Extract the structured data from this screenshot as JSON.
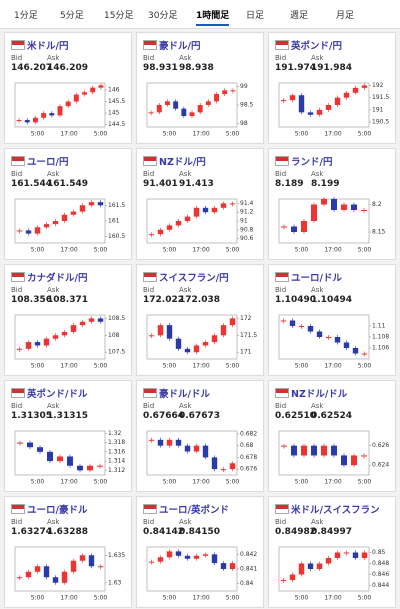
{
  "tabs": [
    "1分足",
    "5分足",
    "15分足",
    "30分足",
    "1時間足",
    "日足",
    "週足",
    "月足"
  ],
  "active_tab": 4,
  "cards": [
    {
      "name": "米ドル/円",
      "bid_label": "Bid",
      "ask_label": "Ask",
      "bid": "146.207",
      "ask": "146.209",
      "chart": {
        "ylim": [
          144.4,
          146.3
        ],
        "yticks": [
          146,
          145.5,
          145,
          144.5
        ],
        "xticks": [
          "5:00",
          "17:00",
          "5:00"
        ],
        "close": [
          144.7,
          144.6,
          144.8,
          145.0,
          144.9,
          145.3,
          145.5,
          145.8,
          145.9,
          146.1,
          146.2
        ]
      }
    },
    {
      "name": "豪ドル/円",
      "bid_label": "Bid",
      "ask_label": "Ask",
      "bid": "98.931",
      "ask": "98.938",
      "chart": {
        "ylim": [
          97.9,
          99.1
        ],
        "yticks": [
          99,
          98.5,
          98
        ],
        "xticks": [
          "5:00",
          "17:00",
          "5:00"
        ],
        "close": [
          98.3,
          98.5,
          98.6,
          98.4,
          98.2,
          98.3,
          98.5,
          98.6,
          98.8,
          98.9,
          98.9
        ]
      }
    },
    {
      "name": "英ポンド/円",
      "bid_label": "Bid",
      "ask_label": "Ask",
      "bid": "191.974",
      "ask": "191.984",
      "chart": {
        "ylim": [
          190.3,
          192.1
        ],
        "yticks": [
          192,
          191.5,
          191,
          190.5
        ],
        "xticks": [
          "5:00",
          "17:00",
          "5:00"
        ],
        "close": [
          191.4,
          191.6,
          190.9,
          190.8,
          191.0,
          191.2,
          191.5,
          191.7,
          191.9,
          192.0
        ]
      }
    },
    {
      "name": "ユーロ/円",
      "bid_label": "Bid",
      "ask_label": "Ask",
      "bid": "161.544",
      "ask": "161.549",
      "chart": {
        "ylim": [
          160.3,
          161.7
        ],
        "yticks": [
          161.5,
          161,
          160.5
        ],
        "xticks": [
          "5:00",
          "17:00",
          "5:00"
        ],
        "close": [
          160.7,
          160.6,
          160.8,
          160.9,
          161.0,
          161.2,
          161.3,
          161.5,
          161.6,
          161.5
        ]
      }
    },
    {
      "name": "NZドル/円",
      "bid_label": "Bid",
      "ask_label": "Ask",
      "bid": "91.401",
      "ask": "91.413",
      "chart": {
        "ylim": [
          90.5,
          91.5
        ],
        "yticks": [
          91.4,
          91.2,
          91,
          90.8,
          90.6
        ],
        "xticks": [
          "5:00",
          "17:00",
          "5:00"
        ],
        "close": [
          90.7,
          90.8,
          90.9,
          91.0,
          91.1,
          91.3,
          91.2,
          91.3,
          91.4,
          91.4
        ]
      }
    },
    {
      "name": "ランド/円",
      "bid_label": "Bid",
      "ask_label": "Ask",
      "bid": "8.189",
      "ask": "8.199",
      "chart": {
        "ylim": [
          8.13,
          8.21
        ],
        "yticks": [
          8.2,
          8.15
        ],
        "xticks": [
          "5:00",
          "17:00",
          "5:00"
        ],
        "close": [
          8.16,
          8.15,
          8.17,
          8.2,
          8.21,
          8.19,
          8.2,
          8.19,
          8.19
        ]
      }
    },
    {
      "name": "カナダドル/円",
      "bid_label": "Bid",
      "ask_label": "Ask",
      "bid": "108.356",
      "ask": "108.371",
      "chart": {
        "ylim": [
          107.3,
          108.6
        ],
        "yticks": [
          108.5,
          108,
          107.5
        ],
        "xticks": [
          "5:00",
          "17:00",
          "5:00"
        ],
        "close": [
          107.6,
          107.8,
          107.7,
          107.9,
          108.0,
          108.1,
          108.3,
          108.4,
          108.5,
          108.4
        ]
      }
    },
    {
      "name": "スイスフラン/円",
      "bid_label": "Bid",
      "ask_label": "Ask",
      "bid": "172.022",
      "ask": "172.038",
      "chart": {
        "ylim": [
          170.8,
          172.1
        ],
        "yticks": [
          172,
          171.5,
          171
        ],
        "xticks": [
          "5:00",
          "17:00",
          "5:00"
        ],
        "close": [
          171.5,
          171.8,
          171.4,
          171.1,
          171.0,
          171.2,
          171.3,
          171.5,
          171.8,
          172.0
        ]
      }
    },
    {
      "name": "ユーロ/ドル",
      "bid_label": "Bid",
      "ask_label": "Ask",
      "bid": "1.10490",
      "ask": "1.10494",
      "chart": {
        "ylim": [
          1.104,
          1.112
        ],
        "yticks": [
          1.11,
          1.108,
          1.106
        ],
        "xticks": [
          "5:00",
          "17:00",
          "5:00"
        ],
        "close": [
          1.111,
          1.11,
          1.11,
          1.109,
          1.108,
          1.108,
          1.107,
          1.106,
          1.105,
          1.105
        ]
      }
    },
    {
      "name": "英ポンド/ドル",
      "bid_label": "Bid",
      "ask_label": "Ask",
      "bid": "1.31305",
      "ask": "1.31315",
      "chart": {
        "ylim": [
          1.311,
          1.3205
        ],
        "yticks": [
          1.32,
          1.318,
          1.316,
          1.314,
          1.312
        ],
        "xticks": [
          "5:00",
          "17:00",
          "5:00"
        ],
        "close": [
          1.318,
          1.317,
          1.316,
          1.314,
          1.315,
          1.313,
          1.312,
          1.313,
          1.313
        ]
      }
    },
    {
      "name": "豪ドル/ドル",
      "bid_label": "Bid",
      "ask_label": "Ask",
      "bid": "0.67664",
      "ask": "0.67673",
      "chart": {
        "ylim": [
          0.675,
          0.6825
        ],
        "yticks": [
          0.682,
          0.68,
          0.678,
          0.676
        ],
        "xticks": [
          "5:00",
          "17:00",
          "5:00"
        ],
        "close": [
          0.681,
          0.68,
          0.681,
          0.68,
          0.679,
          0.68,
          0.678,
          0.676,
          0.676,
          0.677
        ]
      }
    },
    {
      "name": "NZドル/ドル",
      "bid_label": "Bid",
      "ask_label": "Ask",
      "bid": "0.62510",
      "ask": "0.62524",
      "chart": {
        "ylim": [
          0.623,
          0.6275
        ],
        "yticks": [
          0.626,
          0.624
        ],
        "xticks": [
          "5:00",
          "17:00",
          "5:00"
        ],
        "close": [
          0.626,
          0.625,
          0.626,
          0.625,
          0.626,
          0.625,
          0.624,
          0.625,
          0.625
        ]
      }
    },
    {
      "name": "ユーロ/豪ドル",
      "bid_label": "Bid",
      "ask_label": "Ask",
      "bid": "1.63274",
      "ask": "1.63288",
      "chart": {
        "ylim": [
          1.6285,
          1.6365
        ],
        "yticks": [
          1.635,
          1.63
        ],
        "xticks": [
          "5:00",
          "17:00",
          "5:00"
        ],
        "close": [
          1.631,
          1.632,
          1.633,
          1.631,
          1.63,
          1.632,
          1.634,
          1.635,
          1.633,
          1.633
        ]
      }
    },
    {
      "name": "ユーロ/英ポンド",
      "bid_label": "Bid",
      "ask_label": "Ask",
      "bid": "0.84142",
      "ask": "0.84150",
      "chart": {
        "ylim": [
          0.8395,
          0.8425
        ],
        "yticks": [
          0.842,
          0.841,
          0.84
        ],
        "xticks": [
          "5:00",
          "17:00",
          "5:00"
        ],
        "close": [
          0.8415,
          0.8418,
          0.8422,
          0.8419,
          0.8417,
          0.8419,
          0.842,
          0.8414,
          0.841,
          0.8414
        ]
      }
    },
    {
      "name": "米ドル/スイスフラン",
      "bid_label": "Bid",
      "ask_label": "Ask",
      "bid": "0.84982",
      "ask": "0.84997",
      "chart": {
        "ylim": [
          0.843,
          0.851
        ],
        "yticks": [
          0.85,
          0.848,
          0.846,
          0.844
        ],
        "xticks": [
          "5:00",
          "17:00",
          "5:00"
        ],
        "close": [
          0.845,
          0.846,
          0.848,
          0.847,
          0.848,
          0.849,
          0.85,
          0.85,
          0.849,
          0.85
        ]
      }
    }
  ]
}
